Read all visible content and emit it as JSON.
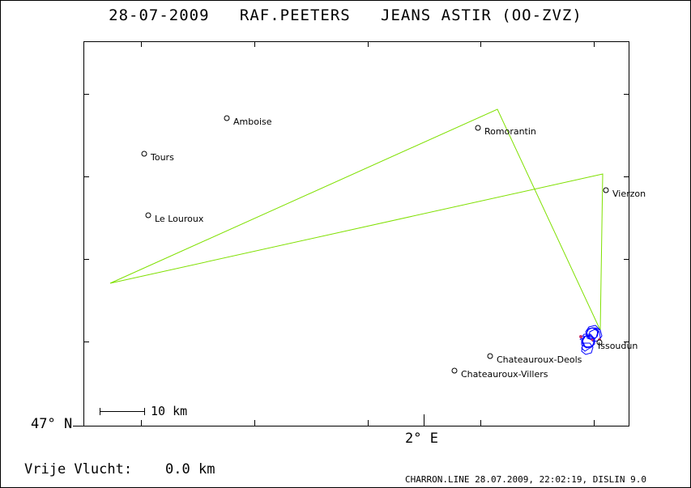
{
  "header": {
    "title": "28-07-2009   RAF.PEETERS   JEANS ASTIR (OO-ZVZ)"
  },
  "axes": {
    "lat_label": "47° N",
    "lon_label": "2° E"
  },
  "scale": {
    "label": "10 km"
  },
  "places": [
    {
      "name": "Amboise"
    },
    {
      "name": "Tours"
    },
    {
      "name": "Le Louroux"
    },
    {
      "name": "Romorantin"
    },
    {
      "name": "Vierzon"
    },
    {
      "name": "Issoudun"
    },
    {
      "name": "Chateauroux-Deols"
    },
    {
      "name": "Chateauroux-Villers"
    }
  ],
  "task": {
    "line_color": "#7fe000"
  },
  "track": {
    "line_color": "#0000ff"
  },
  "flight": {
    "label": "Vrije Vlucht:",
    "distance": "0.0 km"
  },
  "footer": {
    "text": "CHARRON.LINE 28.07.2009, 22:02:19, DISLIN 9.0"
  }
}
